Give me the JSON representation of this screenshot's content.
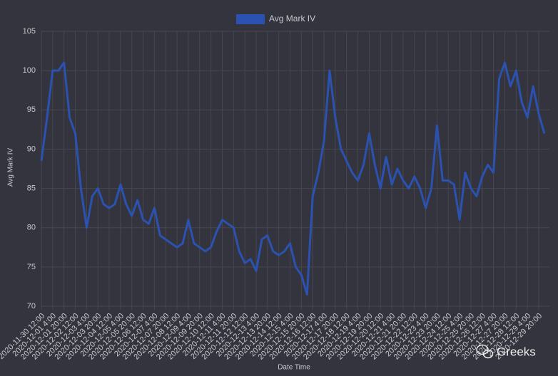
{
  "chart_data": {
    "type": "line",
    "legend": "top",
    "xlabel": "Date Time",
    "ylabel": "Avg Mark IV",
    "watermark": "Greeks",
    "ylim": [
      70,
      105
    ],
    "yticks": [
      70,
      75,
      80,
      85,
      90,
      95,
      100,
      105
    ],
    "grid": true,
    "categories": [
      "2020-11-30 12:00",
      null,
      "2020-12-01 4:00",
      null,
      "2020-12-01 20:00",
      null,
      "2020-12-02 12:00",
      null,
      "2020-12-03 4:00",
      null,
      "2020-12-03 20:00",
      null,
      "2020-12-04 12:00",
      null,
      "2020-12-05 4:00",
      null,
      "2020-12-05 20:00",
      null,
      "2020-12-06 12:00",
      null,
      "2020-12-07 4:00",
      null,
      "2020-12-07 20:00",
      null,
      "2020-12-08 12:00",
      null,
      "2020-12-09 4:00",
      null,
      "2020-12-09 20:00",
      null,
      "2020-12-10 12:00",
      null,
      "2020-12-11 4:00",
      null,
      "2020-12-11 20:00",
      null,
      "2020-12-12 12:00",
      null,
      "2020-12-13 4:00",
      null,
      "2020-12-13 20:00",
      null,
      "2020-12-14 12:00",
      null,
      "2020-12-15 4:00",
      null,
      "2020-12-15 20:00",
      null,
      "2020-12-16 12:00",
      null,
      "2020-12-17 4:00",
      null,
      "2020-12-17 20:00",
      null,
      "2020-12-18 12:00",
      null,
      "2020-12-19 4:00",
      null,
      "2020-12-19 20:00",
      null,
      "2020-12-20 12:00",
      null,
      "2020-12-21 4:00",
      null,
      "2020-12-21 20:00",
      null,
      "2020-12-22 12:00",
      null,
      "2020-12-23 4:00",
      null,
      "2020-12-23 20:00",
      null,
      "2020-12-24 12:00",
      null,
      "2020-12-25 4:00",
      null,
      "2020-12-25 20:00",
      null,
      "2020-12-26 12:00",
      null,
      "2020-12-27 4:00",
      null,
      "2020-12-27 20:00",
      null,
      "2020-12-28 12:00",
      null,
      "2020-12-29 4:00",
      null,
      "2020-12-29 20:00",
      null
    ],
    "series": [
      {
        "name": "Avg Mark IV",
        "color": "#2b52b0",
        "values": [
          88.5,
          94,
          100,
          100,
          101,
          94,
          92,
          85,
          80,
          84,
          85,
          83,
          82.5,
          83,
          85.5,
          83,
          81.5,
          83.5,
          81,
          80.5,
          82.5,
          79,
          78.5,
          78,
          77.5,
          78,
          81,
          78,
          77.5,
          77,
          77.5,
          79.5,
          81,
          80.5,
          80,
          77,
          75.5,
          76,
          74.5,
          78.5,
          79,
          77,
          76.5,
          77,
          78,
          75,
          74,
          71.5,
          84,
          87,
          91,
          100,
          94,
          90,
          88.5,
          87,
          86,
          88,
          92,
          88,
          85,
          89,
          85.5,
          87.5,
          86,
          85,
          86.5,
          85,
          82.5,
          85,
          93,
          86,
          86,
          85.5,
          81,
          87,
          85,
          84,
          86.5,
          88,
          87,
          99,
          101,
          98,
          100,
          96,
          94,
          98,
          94.5,
          92
        ]
      }
    ]
  }
}
